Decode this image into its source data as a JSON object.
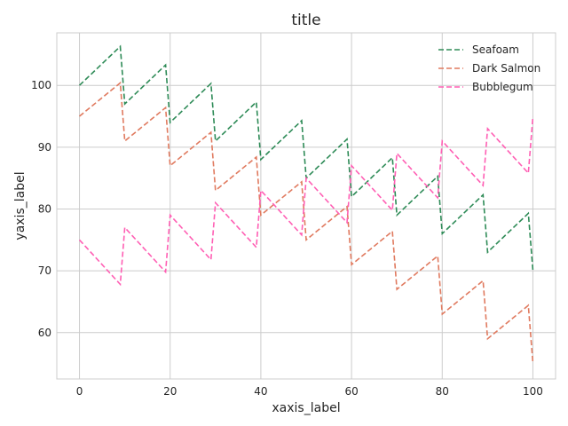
{
  "chart_data": {
    "type": "line",
    "title": "title",
    "xlabel": "xaxis_label",
    "ylabel": "yaxis_label",
    "xlim": [
      -5,
      105
    ],
    "ylim": [
      52.5,
      108.5
    ],
    "xticks": [
      0,
      20,
      40,
      60,
      80,
      100
    ],
    "yticks": [
      60,
      70,
      80,
      90,
      100
    ],
    "grid": true,
    "legend": "top-right",
    "series": [
      {
        "name": "Seafoam",
        "color": "#2e8b57",
        "x": [
          0,
          9,
          10,
          19,
          20,
          29,
          30,
          39,
          40,
          49,
          50,
          59,
          60,
          69,
          70,
          79,
          80,
          89,
          90,
          99,
          100
        ],
        "y": [
          100,
          106.3,
          97,
          103.3,
          94,
          100.3,
          91,
          97.3,
          88,
          94.3,
          85,
          91.3,
          82,
          88.3,
          79,
          85.3,
          76,
          82.3,
          73,
          79.3,
          70
        ]
      },
      {
        "name": "Dark Salmon",
        "color": "#e07a5f",
        "x": [
          0,
          9,
          10,
          19,
          20,
          29,
          30,
          39,
          40,
          49,
          50,
          59,
          60,
          69,
          70,
          79,
          80,
          89,
          90,
          99,
          100
        ],
        "y": [
          95,
          100.4,
          91,
          96.4,
          87,
          92.4,
          83,
          88.4,
          79,
          84.4,
          75,
          80.4,
          71,
          76.4,
          67,
          72.4,
          63,
          68.4,
          59,
          64.4,
          55
        ]
      },
      {
        "name": "Bubblegum",
        "color": "#ff5fb4",
        "x": [
          0,
          9,
          10,
          19,
          20,
          29,
          30,
          39,
          40,
          49,
          50,
          59,
          60,
          69,
          70,
          79,
          80,
          89,
          90,
          99,
          100
        ],
        "y": [
          75,
          67.8,
          77,
          69.8,
          79,
          71.8,
          81,
          73.8,
          83,
          75.8,
          85,
          77.8,
          87,
          79.8,
          89,
          81.8,
          91,
          83.8,
          93,
          85.8,
          95
        ]
      }
    ]
  }
}
